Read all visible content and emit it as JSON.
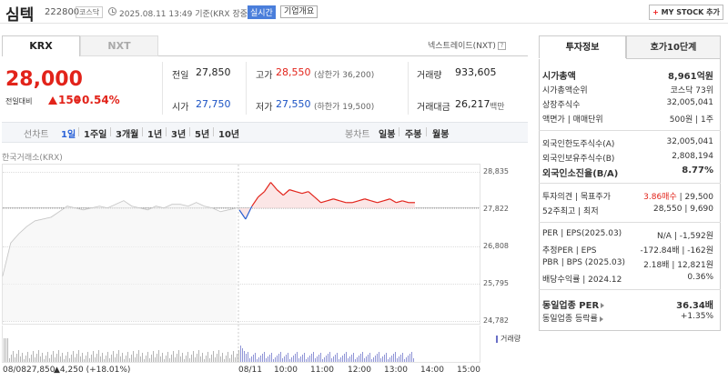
{
  "header": {
    "name": "심텍",
    "code": "222800",
    "market": "코스닥",
    "datetime": "2025.08.11 13:49  기준(KRX 장중)",
    "realtime": "실시간",
    "company_info": "기업개요",
    "my_stock": "MY STOCK 추가"
  },
  "tabs": {
    "krx": "KRX",
    "nxt": "NXT",
    "nxt_link": "넥스트레이드(NXT)"
  },
  "quote": {
    "price": "28,000",
    "change_label": "전일대비",
    "change": "150",
    "change_pct": "+0.54%",
    "prev_close_label": "전일",
    "prev_close": "27,850",
    "open_label": "시가",
    "open": "27,750",
    "high_label": "고가",
    "high": "28,550",
    "upper_limit": "(상한가 36,200)",
    "low_label": "저가",
    "low": "27,550",
    "lower_limit": "(하한가 19,500)",
    "volume_label": "거래량",
    "volume": "933,605",
    "amount_label": "거래대금",
    "amount": "26,217",
    "amount_unit": "백만"
  },
  "toolbar": {
    "line_label": "선차트",
    "periods": [
      "1일",
      "1주일",
      "3개월",
      "1년",
      "3년",
      "5년",
      "10년"
    ],
    "candle_label": "봉차트",
    "candles": [
      "일봉",
      "주봉",
      "월봉"
    ]
  },
  "chart_source": "한국거래소(KRX)",
  "chart_data": {
    "type": "line",
    "y_ticks": [
      "28,835",
      "27,822",
      "26,808",
      "25,795",
      "24,782"
    ],
    "ylim": [
      24782,
      28835
    ],
    "reference": 27850,
    "prev_day_points": [
      26000,
      26900,
      27150,
      27350,
      27500,
      27550,
      27600,
      27750,
      27900,
      27850,
      27800,
      27850,
      27900,
      27850,
      27950,
      28050,
      27900,
      27850,
      27800,
      27900,
      27850,
      27950,
      27950,
      27900,
      28000,
      27900,
      27850,
      27750,
      27800,
      27850
    ],
    "today_points": [
      27800,
      27550,
      27900,
      28150,
      28300,
      28550,
      28350,
      28200,
      28350,
      28300,
      28250,
      28300,
      28150,
      28000,
      28050,
      28100,
      28050,
      28000,
      28000,
      28050,
      28100,
      28050,
      28000,
      28050,
      28100,
      28000,
      28050,
      28000,
      28000
    ],
    "x_ticks": [
      "08/08",
      "08/11",
      "10:00",
      "11:00",
      "12:00",
      "13:00",
      "14:00",
      "15:00"
    ],
    "volume_legend": "거래량",
    "prev_summary_close": "27,850",
    "prev_summary_change": "4,250",
    "prev_summary_pct": "(+18.01%)"
  },
  "invest": {
    "tab1": "투자정보",
    "tab2": "호가10단계",
    "rows": [
      {
        "label": "시가총액",
        "value": "8,961억원"
      },
      {
        "label": "시가총액순위",
        "value": "코스닥 73위"
      },
      {
        "label": "상장주식수",
        "value": "32,005,041"
      },
      {
        "label": "액면가 | 매매단위",
        "value": "500원 | 1주"
      },
      {
        "label": "외국인한도주식수(A)",
        "value": "32,005,041"
      },
      {
        "label": "외국인보유주식수(B)",
        "value": "2,808,194"
      },
      {
        "label": "외국인소진율(B/A)",
        "value": "8.77%"
      },
      {
        "label": "투자의견 | 목표주가",
        "value_red": "3.86매수",
        "value": "| 29,500"
      },
      {
        "label": "52주최고 | 최저",
        "value": "28,550 | 9,690"
      },
      {
        "label": "PER | EPS(2025.03)",
        "value": "N/A | -1,592원"
      },
      {
        "label": "추정PER | EPS",
        "value": "-172.84배 | -162원"
      },
      {
        "label": "PBR | BPS (2025.03)",
        "value": "2.18배 | 12,821원"
      },
      {
        "label": "배당수익률 | 2024.12",
        "value": "0.36%"
      },
      {
        "label": "동일업종 PER",
        "value": "36.34배"
      },
      {
        "label": "동일업종 등락률",
        "value": "+1.35%"
      }
    ]
  }
}
